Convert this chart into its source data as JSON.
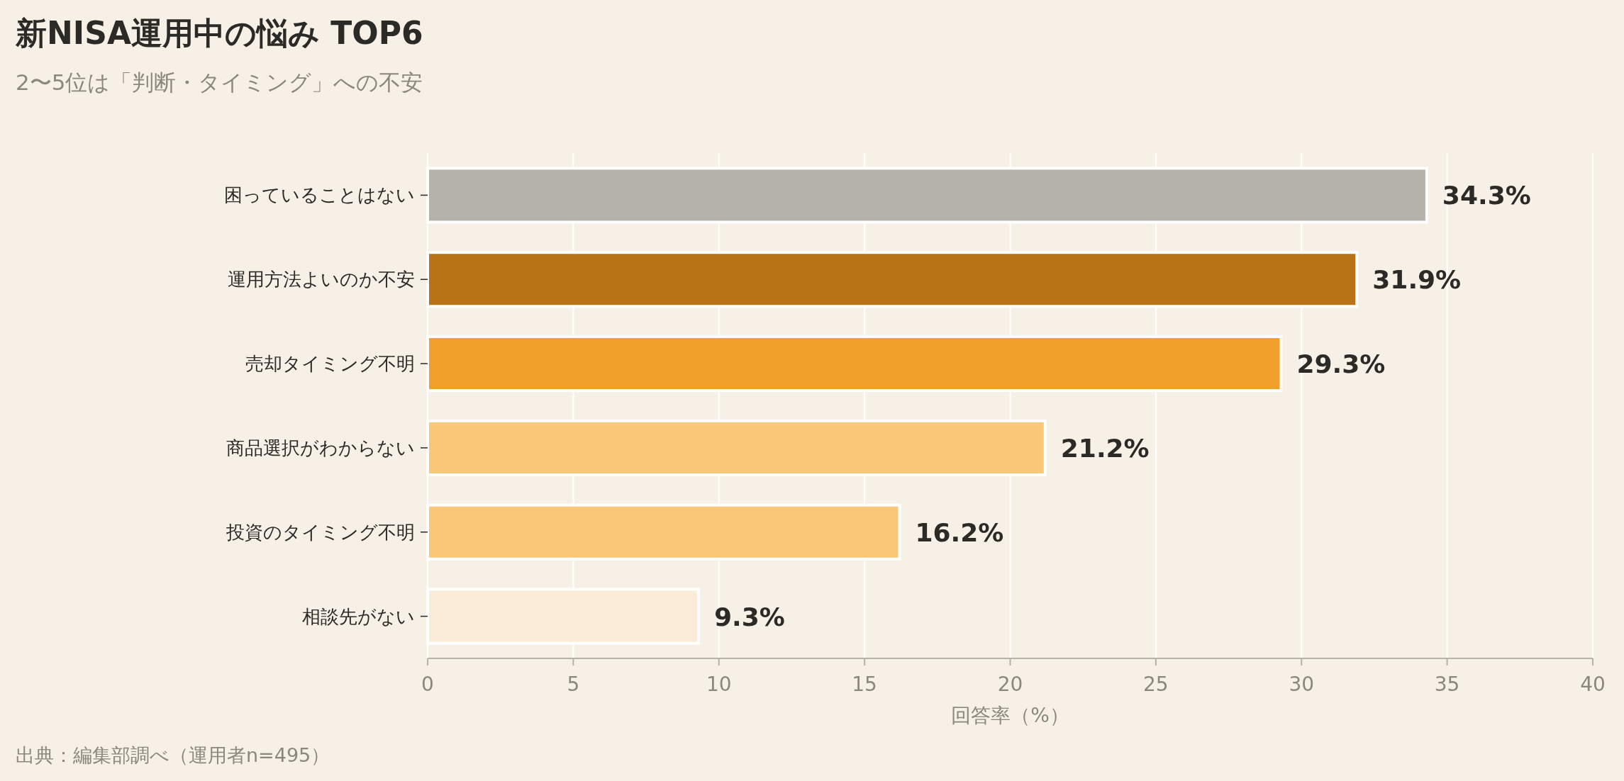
{
  "chart_data": {
    "type": "bar",
    "orientation": "horizontal",
    "title": "新NISA運用中の悩み TOP6",
    "subtitle": "2〜5位は「判断・タイミング」への不安",
    "xlabel": "回答率（%）",
    "categories": [
      "困っていることはない",
      "運用方法よいのか不安",
      "売却タイミング不明",
      "商品選択がわからない",
      "投資のタイミング不明",
      "相談先がない"
    ],
    "values": [
      34.3,
      31.9,
      29.3,
      21.2,
      16.2,
      9.3
    ],
    "colors": [
      "#b5b2aa",
      "#b87316",
      "#ef9f2a",
      "#f8c777",
      "#f8c777",
      "#faecd9"
    ],
    "value_labels": [
      "34.3%",
      "31.9%",
      "29.3%",
      "21.2%",
      "16.2%",
      "9.3%"
    ],
    "xlim": [
      0,
      40
    ],
    "xticks": [
      0,
      5,
      10,
      15,
      20,
      25,
      30,
      35,
      40
    ],
    "grid": "x",
    "annotations": [
      "出典：編集部調べ（運用者n=495）"
    ]
  }
}
